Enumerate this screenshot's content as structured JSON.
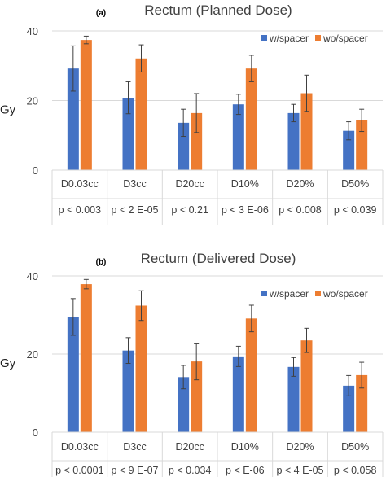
{
  "colors": {
    "w_spacer": "#4472c4",
    "wo_spacer": "#ed7d31"
  },
  "chart_data": [
    {
      "type": "bar",
      "panel": "(a)",
      "title": "Rectum (Planned Dose)",
      "ylabel": "Gy",
      "ylim": [
        0,
        40
      ],
      "yticks": [
        0,
        20,
        40
      ],
      "legend_position": "top-right",
      "categories": [
        "D0.03cc",
        "D3cc",
        "D20cc",
        "D10%",
        "D20%",
        "D50%"
      ],
      "pvalues": [
        "p < 0.003",
        "p < 2 E-05",
        "p < 0.21",
        "p < 3 E-06",
        "p < 0.008",
        "p < 0.039"
      ],
      "series": [
        {
          "name": "w/spacer",
          "values": [
            29.2,
            20.8,
            13.6,
            18.9,
            16.4,
            11.3
          ],
          "errors": [
            6.5,
            4.6,
            3.9,
            2.9,
            2.5,
            2.6
          ]
        },
        {
          "name": "wo/spacer",
          "values": [
            37.4,
            32.1,
            16.4,
            29.2,
            22.1,
            14.3
          ],
          "errors": [
            1.1,
            3.9,
            5.6,
            3.8,
            5.2,
            3.2
          ]
        }
      ]
    },
    {
      "type": "bar",
      "panel": "(b)",
      "title": "Rectum (Delivered Dose)",
      "ylabel": "Gy",
      "ylim": [
        0,
        40
      ],
      "yticks": [
        0,
        20,
        40
      ],
      "legend_position": "top-right",
      "categories": [
        "D0.03cc",
        "D3cc",
        "D20cc",
        "D10%",
        "D20%",
        "D50%"
      ],
      "pvalues": [
        "p < 0.0001",
        "p < 9 E-07",
        "p < 0.034",
        "p <  E-06",
        "p < 4 E-05",
        "p < 0.058"
      ],
      "series": [
        {
          "name": "w/spacer",
          "values": [
            29.5,
            20.9,
            14.1,
            19.4,
            16.7,
            11.9
          ],
          "errors": [
            4.7,
            3.3,
            3.0,
            2.6,
            2.4,
            2.6
          ]
        },
        {
          "name": "wo/spacer",
          "values": [
            37.9,
            32.4,
            18.1,
            29.1,
            23.5,
            14.6
          ],
          "errors": [
            1.2,
            3.8,
            4.7,
            3.4,
            3.1,
            3.3
          ]
        }
      ]
    }
  ]
}
